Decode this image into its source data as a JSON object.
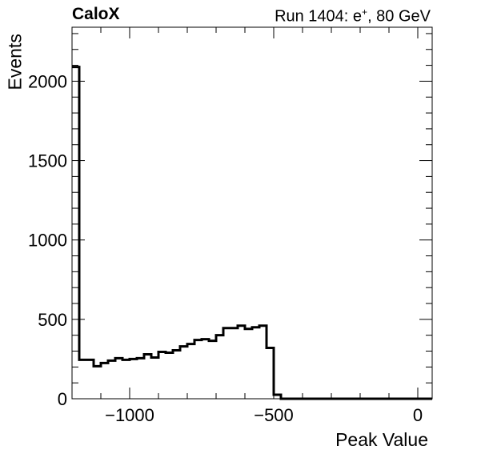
{
  "header": {
    "experiment": "CaloX",
    "run_prefix": "Run 1404: e",
    "run_sup": "+",
    "run_suffix": ", 80 GeV"
  },
  "chart_data": {
    "type": "histogram",
    "title": "",
    "xlabel": "Peak Value",
    "ylabel": "Events",
    "xlim": [
      -1200,
      50
    ],
    "ylim": [
      0,
      2340
    ],
    "xticks": [
      -1000,
      -500,
      0
    ],
    "xtick_labels": [
      "−1000",
      "−500",
      "0"
    ],
    "yticks": [
      0,
      500,
      1000,
      1500,
      2000
    ],
    "ytick_labels": [
      "0",
      "500",
      "1000",
      "1500",
      "2000"
    ],
    "bin_width": 25,
    "bin_start": -1200,
    "values": [
      2090,
      245,
      245,
      205,
      225,
      240,
      255,
      245,
      250,
      255,
      280,
      260,
      295,
      290,
      305,
      330,
      345,
      370,
      375,
      365,
      400,
      445,
      445,
      460,
      440,
      450,
      460,
      320,
      25,
      0,
      0,
      0,
      0,
      0,
      0,
      0,
      0,
      0,
      0,
      0,
      0,
      0,
      0,
      0,
      0,
      0,
      0,
      0,
      0,
      0
    ],
    "grid": false,
    "color": "#000000"
  }
}
